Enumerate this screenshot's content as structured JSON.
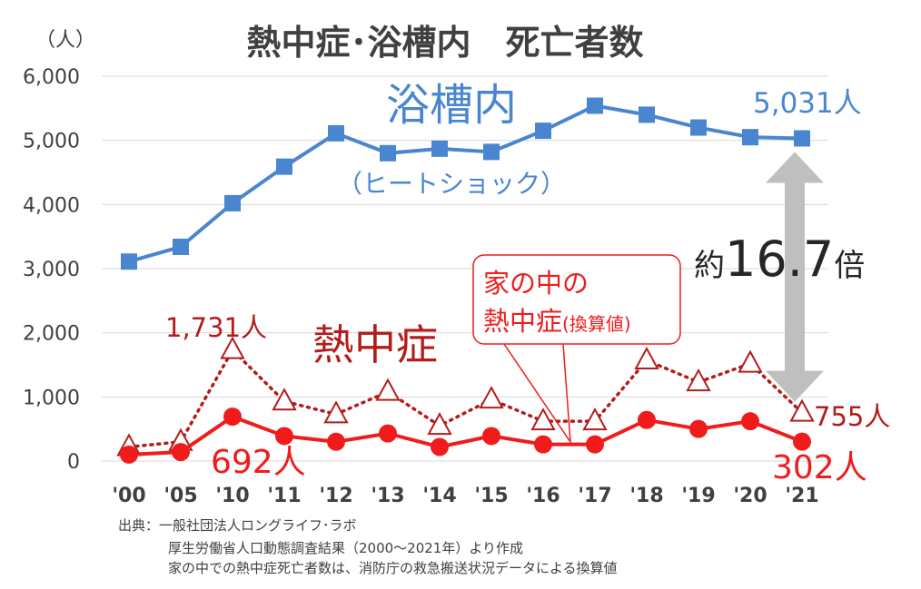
{
  "chart_data": {
    "type": "line",
    "title": "熱中症･浴槽内　死亡者数",
    "yunit": "（人）",
    "ylim": [
      0,
      6000
    ],
    "yticks": [
      "0",
      "1,000",
      "2,000",
      "3,000",
      "4,000",
      "5,000",
      "6,000"
    ],
    "ytick_values": [
      0,
      1000,
      2000,
      3000,
      4000,
      5000,
      6000
    ],
    "categories": [
      "'00",
      "'05",
      "'10",
      "'11",
      "'12",
      "'13",
      "'14",
      "'15",
      "'16",
      "'17",
      "'18",
      "'19",
      "'20",
      "'21"
    ],
    "grid": "horizontal",
    "series": [
      {
        "name": "浴槽内",
        "sublabel": "（ヒートショック）",
        "color": "#4a86cf",
        "marker": "square",
        "line": "solid",
        "values": [
          3110,
          3340,
          4020,
          4590,
          5110,
          4800,
          4870,
          4820,
          5150,
          5540,
          5400,
          5200,
          5050,
          5031
        ]
      },
      {
        "name": "熱中症",
        "color": "#f01c1c",
        "marker": "circle",
        "line": "solid",
        "values": [
          100,
          140,
          692,
          390,
          300,
          430,
          220,
          390,
          260,
          260,
          640,
          500,
          620,
          302
        ]
      },
      {
        "name": "家の中の熱中症(換算値)",
        "color": "#b31c1c",
        "marker": "triangle",
        "line": "dotted",
        "values": [
          220,
          300,
          1731,
          930,
          730,
          1080,
          550,
          960,
          620,
          620,
          1570,
          1230,
          1520,
          755
        ]
      }
    ],
    "annotations": {
      "bath_last": "5,031人",
      "heat_last": "302人",
      "home_last": "755人",
      "heat_2010": "692人",
      "home_2010": "1,731人",
      "ratio_prefix": "約",
      "ratio_value": "16.7",
      "ratio_suffix": "倍",
      "callout_line1": "家の中の",
      "callout_line2": "熱中症",
      "callout_line2_small": "(換算値)"
    }
  },
  "source": {
    "line1": "出典：一般社団法人ロングライフ･ラボ",
    "line2": "厚生労働省人口動態調査結果（2000～2021年）より作成",
    "line3": "家の中での熱中症死亡者数は、消防庁の救急搬送状況データによる換算値"
  },
  "colors": {
    "bath": "#4a86cf",
    "heat": "#f01c1c",
    "home": "#b31c1c",
    "arrow": "#bfbfbf",
    "grid": "#d9d9d9",
    "text": "#404040"
  }
}
